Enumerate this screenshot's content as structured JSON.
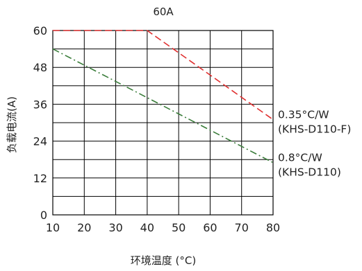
{
  "chart_data": {
    "type": "line",
    "title": "60A",
    "xlabel": "环境温度 (°C)",
    "ylabel": "负载电流(A)",
    "xlim": [
      10,
      80
    ],
    "ylim": [
      0,
      60
    ],
    "xticks": [
      10,
      20,
      30,
      40,
      50,
      60,
      70,
      80
    ],
    "yticks": [
      0,
      12,
      24,
      36,
      48,
      60
    ],
    "grid": true,
    "series": [
      {
        "name_lines": [
          "0.35°C/W",
          "(KHS-D110-F)"
        ],
        "color": "#e03030",
        "style": "dashed",
        "x": [
          10,
          40,
          80
        ],
        "y": [
          60,
          60,
          31
        ]
      },
      {
        "name_lines": [
          "0.8°C/W",
          "(KHS-D110)"
        ],
        "color": "#3a7d3a",
        "style": "dash-dot",
        "x": [
          10,
          80
        ],
        "y": [
          54,
          17
        ]
      }
    ]
  }
}
